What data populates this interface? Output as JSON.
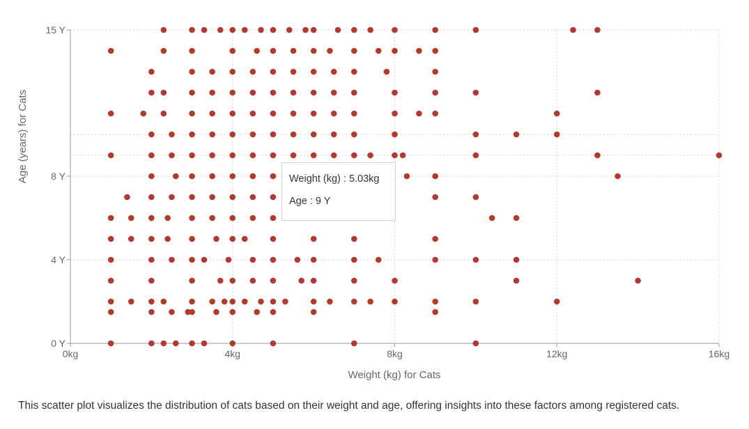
{
  "chart_data": {
    "type": "scatter",
    "xlabel": "Weight (kg) for Cats",
    "ylabel": "Age (years) for Cats",
    "xlim": [
      0,
      16
    ],
    "ylim": [
      0,
      15
    ],
    "x_ticks": [
      {
        "value": 0,
        "label": "0kg"
      },
      {
        "value": 4,
        "label": "4kg"
      },
      {
        "value": 8,
        "label": "8kg"
      },
      {
        "value": 12,
        "label": "12kg"
      },
      {
        "value": 16,
        "label": "16kg"
      }
    ],
    "y_ticks": [
      {
        "value": 0,
        "label": "0 Y"
      },
      {
        "value": 4,
        "label": "4 Y"
      },
      {
        "value": 8,
        "label": "8 Y"
      },
      {
        "value": 15,
        "label": "15 Y"
      }
    ],
    "grid": true,
    "marker_color": "#b03a2e",
    "points": [
      [
        1,
        0
      ],
      [
        2,
        0
      ],
      [
        2.3,
        0
      ],
      [
        2.6,
        0
      ],
      [
        3,
        0
      ],
      [
        3.3,
        0
      ],
      [
        4,
        0
      ],
      [
        5,
        0
      ],
      [
        7,
        0
      ],
      [
        10,
        0
      ],
      [
        1,
        1.5
      ],
      [
        2,
        1.5
      ],
      [
        2.5,
        1.5
      ],
      [
        2.9,
        1.5
      ],
      [
        3,
        1.5
      ],
      [
        3.6,
        1.5
      ],
      [
        4,
        1.5
      ],
      [
        4.6,
        1.5
      ],
      [
        5,
        1.5
      ],
      [
        6,
        1.5
      ],
      [
        9,
        1.5
      ],
      [
        1,
        2
      ],
      [
        1.5,
        2
      ],
      [
        2,
        2
      ],
      [
        2.3,
        2
      ],
      [
        3,
        2
      ],
      [
        3.5,
        2
      ],
      [
        3.8,
        2
      ],
      [
        4,
        2
      ],
      [
        4.3,
        2
      ],
      [
        4.7,
        2
      ],
      [
        5,
        2
      ],
      [
        5.3,
        2
      ],
      [
        6,
        2
      ],
      [
        6.4,
        2
      ],
      [
        7,
        2
      ],
      [
        7.4,
        2
      ],
      [
        8,
        2
      ],
      [
        9,
        2
      ],
      [
        10,
        2
      ],
      [
        12,
        2
      ],
      [
        1,
        3
      ],
      [
        2,
        3
      ],
      [
        3,
        3
      ],
      [
        3.7,
        3
      ],
      [
        4,
        3
      ],
      [
        4.5,
        3
      ],
      [
        5,
        3
      ],
      [
        5.7,
        3
      ],
      [
        6,
        3
      ],
      [
        7,
        3
      ],
      [
        8,
        3
      ],
      [
        11,
        3
      ],
      [
        14,
        3
      ],
      [
        1,
        4
      ],
      [
        2,
        4
      ],
      [
        2.5,
        4
      ],
      [
        3,
        4
      ],
      [
        3.3,
        4
      ],
      [
        3.9,
        4
      ],
      [
        4.5,
        4
      ],
      [
        5,
        4
      ],
      [
        5.6,
        4
      ],
      [
        6,
        4
      ],
      [
        7,
        4
      ],
      [
        7.6,
        4
      ],
      [
        9,
        4
      ],
      [
        10,
        4
      ],
      [
        11,
        4
      ],
      [
        1,
        5
      ],
      [
        1.5,
        5
      ],
      [
        2,
        5
      ],
      [
        2.4,
        5
      ],
      [
        3,
        5
      ],
      [
        3.6,
        5
      ],
      [
        4,
        5
      ],
      [
        4.3,
        5
      ],
      [
        5,
        5
      ],
      [
        6,
        5
      ],
      [
        7,
        5
      ],
      [
        9,
        5
      ],
      [
        1,
        6
      ],
      [
        1.5,
        6
      ],
      [
        2,
        6
      ],
      [
        2.4,
        6
      ],
      [
        3,
        6
      ],
      [
        3.5,
        6
      ],
      [
        4,
        6
      ],
      [
        4.5,
        6
      ],
      [
        5,
        6
      ],
      [
        10.4,
        6
      ],
      [
        11,
        6
      ],
      [
        1.4,
        7
      ],
      [
        2,
        7
      ],
      [
        2.5,
        7
      ],
      [
        3,
        7
      ],
      [
        3.5,
        7
      ],
      [
        4,
        7
      ],
      [
        4.5,
        7
      ],
      [
        5,
        7
      ],
      [
        9,
        7
      ],
      [
        10,
        7
      ],
      [
        2,
        8
      ],
      [
        2.6,
        8
      ],
      [
        3,
        8
      ],
      [
        3.5,
        8
      ],
      [
        4,
        8
      ],
      [
        4.5,
        8
      ],
      [
        5,
        8
      ],
      [
        8.3,
        8
      ],
      [
        9,
        8
      ],
      [
        13.5,
        8
      ],
      [
        1,
        9
      ],
      [
        2,
        9
      ],
      [
        2.5,
        9
      ],
      [
        3,
        9
      ],
      [
        3.5,
        9
      ],
      [
        4,
        9
      ],
      [
        4.5,
        9
      ],
      [
        5,
        9
      ],
      [
        5.5,
        9
      ],
      [
        6,
        9
      ],
      [
        6.5,
        9
      ],
      [
        7,
        9
      ],
      [
        7.4,
        9
      ],
      [
        8,
        9
      ],
      [
        8.2,
        9
      ],
      [
        10,
        9
      ],
      [
        13,
        9
      ],
      [
        16,
        9
      ],
      [
        2,
        10
      ],
      [
        2.5,
        10
      ],
      [
        3,
        10
      ],
      [
        3.5,
        10
      ],
      [
        4,
        10
      ],
      [
        4.5,
        10
      ],
      [
        5,
        10
      ],
      [
        5.5,
        10
      ],
      [
        6,
        10
      ],
      [
        6.5,
        10
      ],
      [
        7,
        10
      ],
      [
        8,
        10
      ],
      [
        10,
        10
      ],
      [
        11,
        10
      ],
      [
        12,
        10
      ],
      [
        1,
        11
      ],
      [
        1.8,
        11
      ],
      [
        2.3,
        11
      ],
      [
        3,
        11
      ],
      [
        3.5,
        11
      ],
      [
        4,
        11
      ],
      [
        4.5,
        11
      ],
      [
        5,
        11
      ],
      [
        5.5,
        11
      ],
      [
        6,
        11
      ],
      [
        6.5,
        11
      ],
      [
        7,
        11
      ],
      [
        8,
        11
      ],
      [
        8.6,
        11
      ],
      [
        9,
        11
      ],
      [
        12,
        11
      ],
      [
        2,
        12
      ],
      [
        2.3,
        12
      ],
      [
        3,
        12
      ],
      [
        3.5,
        12
      ],
      [
        4,
        12
      ],
      [
        4.5,
        12
      ],
      [
        5,
        12
      ],
      [
        5.5,
        12
      ],
      [
        6,
        12
      ],
      [
        6.5,
        12
      ],
      [
        7,
        12
      ],
      [
        8,
        12
      ],
      [
        9,
        12
      ],
      [
        10,
        12
      ],
      [
        13,
        12
      ],
      [
        2,
        13
      ],
      [
        3,
        13
      ],
      [
        3.5,
        13
      ],
      [
        4,
        13
      ],
      [
        4.5,
        13
      ],
      [
        5,
        13
      ],
      [
        5.5,
        13
      ],
      [
        6,
        13
      ],
      [
        6.5,
        13
      ],
      [
        7,
        13
      ],
      [
        7.8,
        13
      ],
      [
        9,
        13
      ],
      [
        1,
        14
      ],
      [
        2.3,
        14
      ],
      [
        3,
        14
      ],
      [
        4,
        14
      ],
      [
        4.6,
        14
      ],
      [
        5,
        14
      ],
      [
        5.5,
        14
      ],
      [
        6,
        14
      ],
      [
        6.4,
        14
      ],
      [
        7,
        14
      ],
      [
        7.6,
        14
      ],
      [
        8,
        14
      ],
      [
        8.6,
        14
      ],
      [
        9,
        14
      ],
      [
        2.3,
        15
      ],
      [
        3,
        15
      ],
      [
        3.3,
        15
      ],
      [
        3.7,
        15
      ],
      [
        4,
        15
      ],
      [
        4.3,
        15
      ],
      [
        4.7,
        15
      ],
      [
        5,
        15
      ],
      [
        5.4,
        15
      ],
      [
        5.8,
        15
      ],
      [
        6,
        15
      ],
      [
        6.6,
        15
      ],
      [
        7,
        15
      ],
      [
        7.4,
        15
      ],
      [
        8,
        15
      ],
      [
        9,
        15
      ],
      [
        10,
        15
      ],
      [
        12.4,
        15
      ],
      [
        13,
        15
      ]
    ]
  },
  "tooltip": {
    "line1": "Weight (kg) : 5.03kg",
    "line2": "Age : 9 Y"
  },
  "caption": "This scatter plot visualizes the distribution of cats based on their weight and age, offering insights into these factors among registered cats."
}
